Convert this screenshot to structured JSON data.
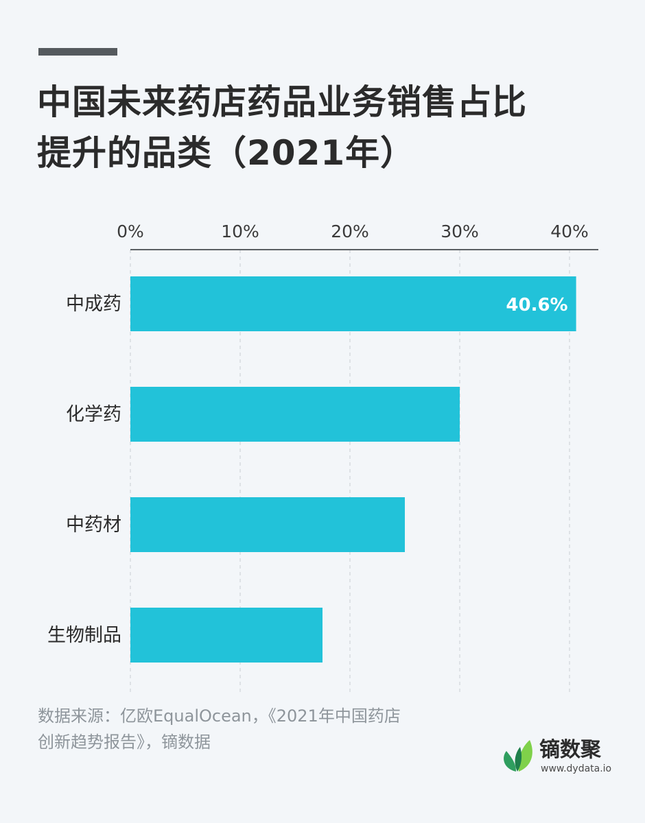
{
  "title": {
    "line1": "中国未来药店药品业务销售占比",
    "line2": "提升的品类（2021年）"
  },
  "chart_data": {
    "type": "bar",
    "orientation": "horizontal",
    "categories": [
      "中成药",
      "化学药",
      "中药材",
      "生物制品"
    ],
    "values": [
      40.6,
      30.0,
      25.0,
      17.5
    ],
    "data_labels": [
      "40.6%",
      "",
      "",
      ""
    ],
    "x_ticks": [
      "0%",
      "10%",
      "20%",
      "30%",
      "40%"
    ],
    "xlim": [
      0,
      42
    ],
    "grid": "vertical-dashed",
    "axis_position": "top",
    "bar_color": "#22c2d9"
  },
  "source": {
    "line1": "数据来源：亿欧EqualOcean，《2021年中国药店",
    "line2": "创新趋势报告》，镝数据"
  },
  "brand": {
    "name": "镝数聚",
    "url": "www.dydata.io",
    "icon": "leaf-logo-icon"
  }
}
